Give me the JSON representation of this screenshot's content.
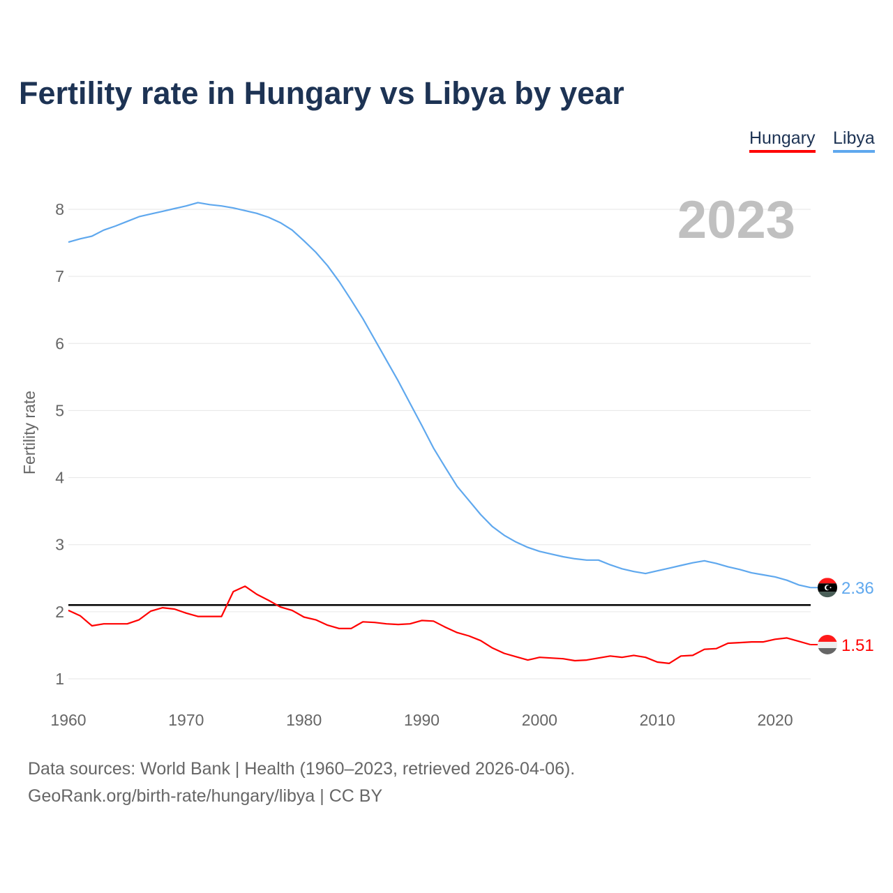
{
  "title": "Fertility rate in Hungary vs Libya by year",
  "legend": [
    {
      "label": "Hungary",
      "color": "#ff0000"
    },
    {
      "label": "Libya",
      "color": "#5fa8ee"
    }
  ],
  "year_label": "2023",
  "source_line1": "Data sources: World Bank | Health (1960–2023, retrieved 2026-04-06).",
  "source_line2": "GeoRank.org/birth-rate/hungary/libya | CC BY",
  "chart_data": {
    "type": "line",
    "title": "Fertility rate in Hungary vs Libya by year",
    "xlabel": "",
    "ylabel": "Fertility rate",
    "xlim": [
      1960,
      2023
    ],
    "ylim": [
      1,
      8
    ],
    "x_ticks": [
      1960,
      1970,
      1980,
      1990,
      2000,
      2010,
      2020
    ],
    "y_ticks": [
      1,
      2,
      3,
      4,
      5,
      6,
      7,
      8
    ],
    "grid": true,
    "legend_position": "top-right",
    "reference_line": {
      "y": 2.1,
      "color": "#000000"
    },
    "x_start": 1960,
    "series": [
      {
        "name": "Hungary",
        "color": "#ff0000",
        "end_label": "1.51",
        "values": [
          2.02,
          1.94,
          1.79,
          1.82,
          1.82,
          1.82,
          1.88,
          2.01,
          2.06,
          2.04,
          1.98,
          1.93,
          1.93,
          1.93,
          2.3,
          2.38,
          2.26,
          2.17,
          2.07,
          2.02,
          1.92,
          1.88,
          1.8,
          1.75,
          1.75,
          1.85,
          1.84,
          1.82,
          1.81,
          1.82,
          1.87,
          1.86,
          1.77,
          1.69,
          1.64,
          1.57,
          1.46,
          1.38,
          1.33,
          1.28,
          1.32,
          1.31,
          1.3,
          1.27,
          1.28,
          1.31,
          1.34,
          1.32,
          1.35,
          1.32,
          1.25,
          1.23,
          1.34,
          1.35,
          1.44,
          1.45,
          1.53,
          1.54,
          1.55,
          1.55,
          1.59,
          1.61,
          1.56,
          1.51
        ]
      },
      {
        "name": "Libya",
        "color": "#5fa8ee",
        "end_label": "2.36",
        "values": [
          7.51,
          7.56,
          7.6,
          7.69,
          7.75,
          7.82,
          7.89,
          7.93,
          7.97,
          8.01,
          8.05,
          8.1,
          8.07,
          8.05,
          8.02,
          7.98,
          7.94,
          7.88,
          7.8,
          7.69,
          7.53,
          7.36,
          7.16,
          6.92,
          6.65,
          6.37,
          6.06,
          5.75,
          5.44,
          5.11,
          4.78,
          4.44,
          4.15,
          3.87,
          3.66,
          3.45,
          3.27,
          3.14,
          3.04,
          2.96,
          2.9,
          2.86,
          2.82,
          2.79,
          2.77,
          2.77,
          2.7,
          2.64,
          2.6,
          2.57,
          2.61,
          2.65,
          2.69,
          2.73,
          2.76,
          2.72,
          2.67,
          2.63,
          2.58,
          2.55,
          2.52,
          2.47,
          2.4,
          2.36
        ]
      }
    ]
  }
}
